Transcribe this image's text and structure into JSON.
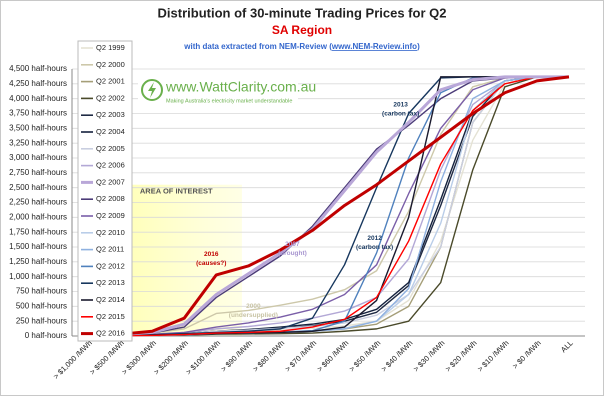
{
  "chart_data": {
    "type": "line",
    "title": "Distribution of 30-minute Trading Prices for Q2",
    "subtitle": "SA Region",
    "source": {
      "prefix": "with data extracted from NEM-Review (",
      "link": "www.NEM-Review.info",
      "suffix": ")"
    },
    "logo": {
      "name": "www.WattClarity.com.au",
      "tagline": "Making Australia's electricity market understandable"
    },
    "area_of_interest": "AREA OF INTEREST",
    "annotations": [
      {
        "text": [
          "2013",
          "(carbon tax)"
        ],
        "color": "#17375e"
      },
      {
        "text": [
          "2012",
          "(carbon tax)"
        ],
        "color": "#17375e"
      },
      {
        "text": [
          "2016",
          "(causes?)"
        ],
        "color": "#c00000"
      },
      {
        "text": [
          "2007",
          "(drought)"
        ],
        "color": "#a896d0"
      },
      {
        "text": [
          "2000",
          "(undersupplied)"
        ],
        "color": "#c9c4a6"
      }
    ],
    "categories": [
      "> $1,000 /MWh",
      "> $500 /MWh",
      "> $300 /MWh",
      "> $200 /MWh",
      "> $100 /MWh",
      "> $90 /MWh",
      "> $80 /MWh",
      "> $70 /MWh",
      "> $60 /MWh",
      "> $50 /MWh",
      "> $40 /MWh",
      "> $30 /MWh",
      "> $20 /MWh",
      "> $10 /MWh",
      "> $0 /MWh",
      "ALL"
    ],
    "ylim": [
      0,
      4500
    ],
    "yticks": [
      {
        "value": 0,
        "label": "0 half-hours"
      },
      {
        "value": 250,
        "label": "250 half-hours"
      },
      {
        "value": 500,
        "label": "500 half-hours"
      },
      {
        "value": 750,
        "label": "750 half-hours"
      },
      {
        "value": 1000,
        "label": "1,000 half-hours"
      },
      {
        "value": 1250,
        "label": "1,250 half-hours"
      },
      {
        "value": 1500,
        "label": "1,500 half-hours"
      },
      {
        "value": 1750,
        "label": "1,750 half-hours"
      },
      {
        "value": 2000,
        "label": "2,000 half-hours"
      },
      {
        "value": 2250,
        "label": "2,250 half-hours"
      },
      {
        "value": 2500,
        "label": "2,500 half-hours"
      },
      {
        "value": 2750,
        "label": "2,750 half-hours"
      },
      {
        "value": 3000,
        "label": "3,000 half-hours"
      },
      {
        "value": 3250,
        "label": "3,250 half-hours"
      },
      {
        "value": 3500,
        "label": "3,500 half-hours"
      },
      {
        "value": 3750,
        "label": "3,750 half-hours"
      },
      {
        "value": 4000,
        "label": "4,000 half-hours"
      },
      {
        "value": 4250,
        "label": "4,250 half-hours"
      },
      {
        "value": 4500,
        "label": "4,500 half-hours"
      }
    ],
    "grid": true,
    "series": [
      {
        "name": "Q2 1999",
        "color": "#e4e2d4",
        "values": [
          5,
          5,
          10,
          20,
          60,
          80,
          100,
          130,
          170,
          250,
          600,
          1600,
          3300,
          4250,
          4368,
          4368
        ]
      },
      {
        "name": "Q2 2000",
        "color": "#cdc8aa",
        "values": [
          20,
          25,
          50,
          120,
          380,
          430,
          520,
          620,
          780,
          1100,
          2100,
          3400,
          4200,
          4350,
          4368,
          4368
        ]
      },
      {
        "name": "Q2 2001",
        "color": "#a59e78",
        "values": [
          5,
          5,
          10,
          20,
          40,
          50,
          60,
          80,
          120,
          200,
          500,
          1500,
          3600,
          4300,
          4368,
          4368
        ]
      },
      {
        "name": "Q2 2002",
        "color": "#4a4a2a",
        "values": [
          5,
          5,
          10,
          15,
          30,
          35,
          40,
          50,
          80,
          120,
          250,
          900,
          2800,
          4200,
          4368,
          4368
        ]
      },
      {
        "name": "Q2 2003",
        "color": "#1f2a44",
        "values": [
          10,
          10,
          20,
          40,
          80,
          100,
          130,
          170,
          250,
          400,
          850,
          2200,
          3700,
          4300,
          4368,
          4368
        ]
      },
      {
        "name": "Q2 2004",
        "color": "#14213d",
        "values": [
          10,
          10,
          20,
          40,
          80,
          110,
          150,
          200,
          280,
          450,
          900,
          2300,
          3800,
          4300,
          4368,
          4368
        ]
      },
      {
        "name": "Q2 2005",
        "color": "#c9cee0",
        "values": [
          10,
          10,
          20,
          40,
          80,
          100,
          130,
          160,
          220,
          350,
          700,
          1500,
          3600,
          4300,
          4368,
          4368
        ]
      },
      {
        "name": "Q2 2006",
        "color": "#b3a8d6",
        "values": [
          10,
          10,
          25,
          60,
          120,
          160,
          220,
          300,
          420,
          650,
          1300,
          2800,
          3900,
          4300,
          4368,
          4368
        ]
      },
      {
        "name": "Q2 2007",
        "color": "#b9a7d8",
        "highlight": true,
        "values": [
          20,
          25,
          60,
          200,
          700,
          1050,
          1400,
          1800,
          2450,
          3100,
          3600,
          4150,
          4320,
          4368,
          4368,
          4368
        ]
      },
      {
        "name": "Q2 2008",
        "color": "#4b3b78",
        "values": [
          20,
          25,
          50,
          150,
          650,
          1000,
          1350,
          1850,
          2500,
          3150,
          3550,
          4000,
          4300,
          4350,
          4368,
          4368
        ]
      },
      {
        "name": "Q2 2009",
        "color": "#7a5ea8",
        "values": [
          10,
          15,
          30,
          60,
          150,
          220,
          320,
          450,
          700,
          1200,
          2400,
          3500,
          4150,
          4350,
          4368,
          4368
        ]
      },
      {
        "name": "Q2 2010",
        "color": "#b9cde8",
        "values": [
          5,
          5,
          10,
          20,
          50,
          60,
          70,
          90,
          130,
          250,
          700,
          1900,
          3800,
          4300,
          4368,
          4368
        ]
      },
      {
        "name": "Q2 2011",
        "color": "#8fb1e0",
        "values": [
          5,
          5,
          10,
          20,
          40,
          50,
          60,
          80,
          120,
          250,
          800,
          2600,
          4000,
          4300,
          4368,
          4368
        ]
      },
      {
        "name": "Q2 2012",
        "color": "#4f81bd",
        "values": [
          10,
          10,
          15,
          30,
          45,
          55,
          65,
          90,
          250,
          1400,
          3000,
          4100,
          4350,
          4368,
          4368,
          4368
        ]
      },
      {
        "name": "Q2 2013",
        "color": "#17375e",
        "values": [
          10,
          10,
          20,
          40,
          60,
          80,
          120,
          300,
          1200,
          2500,
          3750,
          4350,
          4368,
          4368,
          4368,
          4368
        ]
      },
      {
        "name": "Q2 2014",
        "color": "#1a1a2e",
        "values": [
          10,
          10,
          15,
          25,
          40,
          50,
          60,
          80,
          150,
          600,
          2000,
          4368,
          4368,
          4368,
          4368,
          4368
        ]
      },
      {
        "name": "Q2 2015",
        "color": "#ff0000",
        "values": [
          5,
          5,
          10,
          25,
          50,
          60,
          80,
          150,
          280,
          650,
          1600,
          2900,
          3800,
          4250,
          4368,
          4368
        ]
      },
      {
        "name": "Q2 2016",
        "color": "#c00000",
        "highlight": true,
        "values": [
          30,
          30,
          80,
          300,
          1030,
          1180,
          1450,
          1780,
          2200,
          2550,
          2950,
          3350,
          3750,
          4100,
          4300,
          4368
        ]
      }
    ]
  }
}
